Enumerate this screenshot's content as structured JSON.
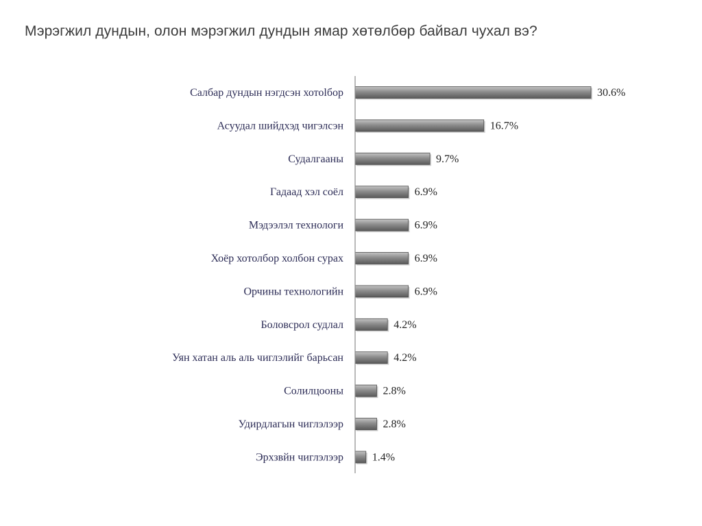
{
  "slide": {
    "title": "Мэрэгжил дундын, олон мэрэгжил дундын ямар хөтөлбөр байвал чухал вэ?"
  },
  "colors": {
    "bar_top": "#c4c4c4",
    "bar_mid": "#8c8c8c",
    "bar_bottom": "#5a5a5a",
    "bar_stroke": "#4a4a4a",
    "axis": "#8a8a8a"
  },
  "chart_data": {
    "type": "bar",
    "orientation": "horizontal",
    "title": "Мэрэгжил дундын, олон мэрэгжил дундын ямар хөтөлбөр байвал чухал вэ?",
    "xlabel": "",
    "ylabel": "",
    "grid": false,
    "legend": "none",
    "xlim": [
      0,
      30.6
    ],
    "categories": [
      "Салбар дундын нэгдсэн хотоlбор",
      "Асуудал шийдхэд чигэлсэн",
      "Судалгааны",
      "Гадаад хэл соёл",
      "Мэдээлэл технологи",
      "Хоёр хотолбор холбон сурах",
      "Орчины технологийн",
      "Боловсрол судлал",
      "Уян хатан аль аль чиглэлийг барьсан",
      "Солилцооны",
      "Удирдлагын чиглэлээр",
      "Эрхзвйн чиглэлээр"
    ],
    "values": [
      30.6,
      16.7,
      9.7,
      6.9,
      6.9,
      6.9,
      6.9,
      4.2,
      4.2,
      2.8,
      2.8,
      1.4
    ],
    "value_labels": [
      "30.6%",
      "16.7%",
      "9.7%",
      "6.9%",
      "6.9%",
      "6.9%",
      "6.9%",
      "4.2%",
      "4.2%",
      "2.8%",
      "2.8%",
      "1.4%"
    ]
  }
}
